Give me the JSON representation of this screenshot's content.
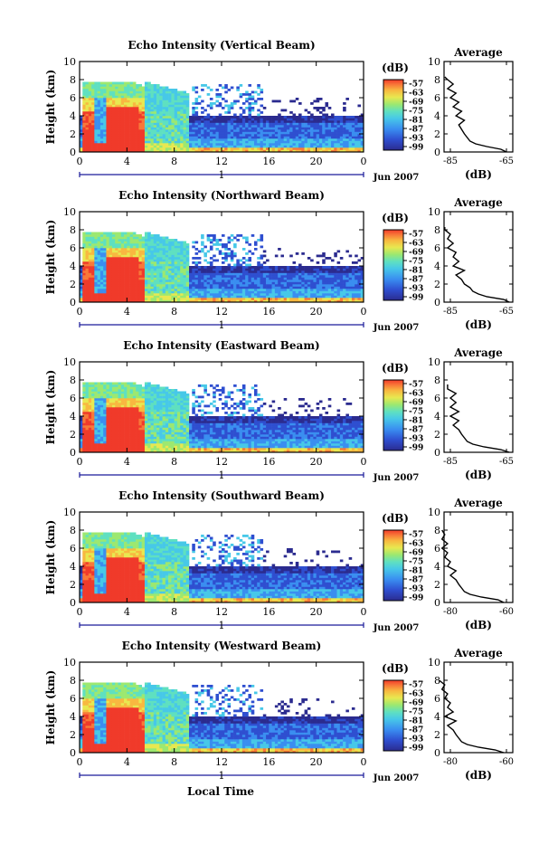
{
  "figure": {
    "xlabel": "Local Time",
    "date_label": "Jun 2007",
    "colorbar_unit": "(dB)",
    "avg_title": "Average",
    "avg_xlabel": "(dB)",
    "day_marker": "1",
    "ylabel": "Height (km)"
  },
  "chart_data": [
    {
      "type": "heatmap",
      "title": "Echo Intensity (Vertical Beam)",
      "ylabel": "Height (km)",
      "x_ticks": [
        "0",
        "4",
        "8",
        "12",
        "16",
        "20",
        "0"
      ],
      "y_ticks": [
        "0",
        "2",
        "4",
        "6",
        "8",
        "10"
      ],
      "xlim": [
        0,
        24
      ],
      "ylim": [
        0,
        10
      ],
      "colorbar": {
        "label": "(dB)",
        "ticks": [
          "-57",
          "-63",
          "-69",
          "-75",
          "-81",
          "-87",
          "-93",
          "-99"
        ],
        "range": [
          -99,
          -57
        ]
      },
      "date": "Jun 2007",
      "average": {
        "title": "Average",
        "xlabel": "(dB)",
        "x_ticks": [
          "-85",
          "-65"
        ],
        "y_ticks": [
          "0",
          "2",
          "4",
          "6",
          "8",
          "10"
        ],
        "ylim": [
          0,
          10
        ],
        "profile": [
          [
            -65,
            0
          ],
          [
            -67,
            0.3
          ],
          [
            -72,
            0.6
          ],
          [
            -76,
            0.9
          ],
          [
            -78,
            1.2
          ],
          [
            -79,
            1.6
          ],
          [
            -80,
            2.0
          ],
          [
            -81,
            2.5
          ],
          [
            -82,
            3.0
          ],
          [
            -80,
            3.5
          ],
          [
            -83,
            4.0
          ],
          [
            -81,
            4.5
          ],
          [
            -84,
            5.0
          ],
          [
            -82,
            5.5
          ],
          [
            -85,
            6.0
          ],
          [
            -83,
            6.5
          ],
          [
            -86,
            7.0
          ],
          [
            -84,
            7.5
          ],
          [
            -86,
            8.0
          ],
          [
            -87,
            8.3
          ]
        ]
      }
    },
    {
      "type": "heatmap",
      "title": "Echo Intensity (Northward Beam)",
      "ylabel": "Height (km)",
      "x_ticks": [
        "0",
        "4",
        "8",
        "12",
        "16",
        "20",
        "0"
      ],
      "y_ticks": [
        "0",
        "2",
        "4",
        "6",
        "8",
        "10"
      ],
      "xlim": [
        0,
        24
      ],
      "ylim": [
        0,
        10
      ],
      "colorbar": {
        "label": "(dB)",
        "ticks": [
          "-57",
          "-63",
          "-69",
          "-75",
          "-81",
          "-87",
          "-93",
          "-99"
        ],
        "range": [
          -99,
          -57
        ]
      },
      "date": "Jun 2007",
      "average": {
        "title": "Average",
        "xlabel": "(dB)",
        "x_ticks": [
          "-85",
          "-65"
        ],
        "y_ticks": [
          "0",
          "2",
          "4",
          "6",
          "8",
          "10"
        ],
        "ylim": [
          0,
          10
        ],
        "profile": [
          [
            -64,
            0
          ],
          [
            -66,
            0.3
          ],
          [
            -72,
            0.6
          ],
          [
            -75,
            0.9
          ],
          [
            -77,
            1.2
          ],
          [
            -78,
            1.6
          ],
          [
            -80,
            2.0
          ],
          [
            -81,
            2.5
          ],
          [
            -83,
            3.0
          ],
          [
            -80,
            3.5
          ],
          [
            -84,
            4.0
          ],
          [
            -82,
            4.5
          ],
          [
            -84,
            5.0
          ],
          [
            -83,
            5.5
          ],
          [
            -86,
            6.0
          ],
          [
            -84,
            6.5
          ],
          [
            -86,
            7.0
          ],
          [
            -85,
            7.5
          ],
          [
            -87,
            8.0
          ],
          [
            -87,
            8.3
          ]
        ]
      }
    },
    {
      "type": "heatmap",
      "title": "Echo Intensity (Eastward Beam)",
      "ylabel": "Height (km)",
      "x_ticks": [
        "0",
        "4",
        "8",
        "12",
        "16",
        "20",
        "0"
      ],
      "y_ticks": [
        "0",
        "2",
        "4",
        "6",
        "8",
        "10"
      ],
      "xlim": [
        0,
        24
      ],
      "ylim": [
        0,
        10
      ],
      "colorbar": {
        "label": "(dB)",
        "ticks": [
          "-57",
          "-63",
          "-69",
          "-75",
          "-81",
          "-87",
          "-93",
          "-99"
        ],
        "range": [
          -99,
          -57
        ]
      },
      "date": "Jun 2007",
      "average": {
        "title": "Average",
        "xlabel": "(dB)",
        "x_ticks": [
          "-85",
          "-65"
        ],
        "y_ticks": [
          "0",
          "2",
          "4",
          "6",
          "8",
          "10"
        ],
        "ylim": [
          0,
          10
        ],
        "profile": [
          [
            -64,
            0
          ],
          [
            -67,
            0.3
          ],
          [
            -73,
            0.6
          ],
          [
            -77,
            0.9
          ],
          [
            -79,
            1.2
          ],
          [
            -80,
            1.6
          ],
          [
            -81,
            2.0
          ],
          [
            -82,
            2.5
          ],
          [
            -84,
            3.0
          ],
          [
            -82,
            3.5
          ],
          [
            -85,
            4.0
          ],
          [
            -82,
            4.5
          ],
          [
            -85,
            5.0
          ],
          [
            -83,
            5.5
          ],
          [
            -85,
            6.0
          ],
          [
            -83,
            6.5
          ],
          [
            -86,
            7.0
          ],
          [
            -86,
            7.5
          ]
        ]
      }
    },
    {
      "type": "heatmap",
      "title": "Echo Intensity (Southward Beam)",
      "ylabel": "Height (km)",
      "x_ticks": [
        "0",
        "4",
        "8",
        "12",
        "16",
        "20",
        "0"
      ],
      "y_ticks": [
        "0",
        "2",
        "4",
        "6",
        "8",
        "10"
      ],
      "xlim": [
        0,
        24
      ],
      "ylim": [
        0,
        10
      ],
      "colorbar": {
        "label": "(dB)",
        "ticks": [
          "-57",
          "-63",
          "-69",
          "-75",
          "-81",
          "-87",
          "-93",
          "-99"
        ],
        "range": [
          -99,
          -57
        ]
      },
      "date": "Jun 2007",
      "average": {
        "title": "Average",
        "xlabel": "(dB)",
        "x_ticks": [
          "-80",
          "-60"
        ],
        "y_ticks": [
          "0",
          "2",
          "4",
          "6",
          "8",
          "10"
        ],
        "ylim": [
          0,
          10
        ],
        "profile": [
          [
            -61,
            0
          ],
          [
            -63,
            0.3
          ],
          [
            -69,
            0.6
          ],
          [
            -73,
            0.9
          ],
          [
            -75,
            1.2
          ],
          [
            -76,
            1.6
          ],
          [
            -77,
            2.0
          ],
          [
            -78,
            2.5
          ],
          [
            -80,
            3.0
          ],
          [
            -78,
            3.5
          ],
          [
            -81,
            4.0
          ],
          [
            -80,
            4.5
          ],
          [
            -82,
            5.0
          ],
          [
            -81,
            5.5
          ],
          [
            -83,
            6.0
          ],
          [
            -81,
            6.5
          ],
          [
            -83,
            7.0
          ],
          [
            -82,
            7.5
          ],
          [
            -83,
            8.0
          ]
        ]
      }
    },
    {
      "type": "heatmap",
      "title": "Echo Intensity (Westward Beam)",
      "ylabel": "Height (km)",
      "x_ticks": [
        "0",
        "4",
        "8",
        "12",
        "16",
        "20",
        "0"
      ],
      "y_ticks": [
        "0",
        "2",
        "4",
        "6",
        "8",
        "10"
      ],
      "xlim": [
        0,
        24
      ],
      "ylim": [
        0,
        10
      ],
      "colorbar": {
        "label": "(dB)",
        "ticks": [
          "-57",
          "-63",
          "-69",
          "-75",
          "-81",
          "-87",
          "-93",
          "-99"
        ],
        "range": [
          -99,
          -57
        ]
      },
      "date": "Jun 2007",
      "average": {
        "title": "Average",
        "xlabel": "(dB)",
        "x_ticks": [
          "-80",
          "-60"
        ],
        "y_ticks": [
          "0",
          "2",
          "4",
          "6",
          "8",
          "10"
        ],
        "ylim": [
          0,
          10
        ],
        "profile": [
          [
            -61,
            0
          ],
          [
            -64,
            0.3
          ],
          [
            -70,
            0.6
          ],
          [
            -74,
            0.9
          ],
          [
            -76,
            1.2
          ],
          [
            -77,
            1.6
          ],
          [
            -78,
            2.0
          ],
          [
            -79,
            2.5
          ],
          [
            -81,
            3.0
          ],
          [
            -78,
            3.5
          ],
          [
            -82,
            4.0
          ],
          [
            -79,
            4.5
          ],
          [
            -81,
            5.0
          ],
          [
            -80,
            5.5
          ],
          [
            -82,
            6.0
          ],
          [
            -81,
            6.5
          ],
          [
            -83,
            7.0
          ],
          [
            -82,
            7.5
          ],
          [
            -84,
            8.0
          ]
        ]
      }
    }
  ],
  "colors": {
    "scale": [
      "#2b2b8f",
      "#2f4fd0",
      "#3a8ef0",
      "#47c8e8",
      "#5fe0c0",
      "#9ce870",
      "#e8e850",
      "#f8b840",
      "#f87838",
      "#f03a2a"
    ],
    "axis": "#000000",
    "day_bar": "#1a1a9a"
  }
}
